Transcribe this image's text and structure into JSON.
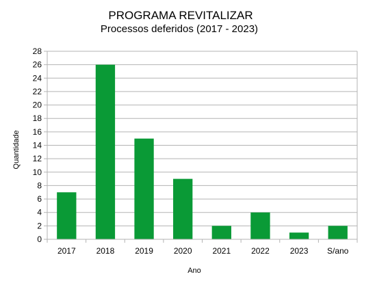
{
  "chart_data": {
    "type": "bar",
    "title": "PROGRAMA REVITALIZAR",
    "subtitle": "Processos deferidos (2017 - 2023)",
    "xlabel": "Ano",
    "ylabel": "Quantidade",
    "categories": [
      "2017",
      "2018",
      "2019",
      "2020",
      "2021",
      "2022",
      "2023",
      "S/ano"
    ],
    "values": [
      7,
      26,
      15,
      9,
      2,
      4,
      1,
      2
    ],
    "ylim": [
      0,
      28
    ],
    "yticks": [
      "0",
      "2",
      "4",
      "6",
      "8",
      "10",
      "12",
      "14",
      "16",
      "18",
      "20",
      "22",
      "24",
      "26",
      "28"
    ],
    "grid": true,
    "legend": "none",
    "bar_color": "#0a9a36",
    "grid_color": "#b3b3b3"
  }
}
